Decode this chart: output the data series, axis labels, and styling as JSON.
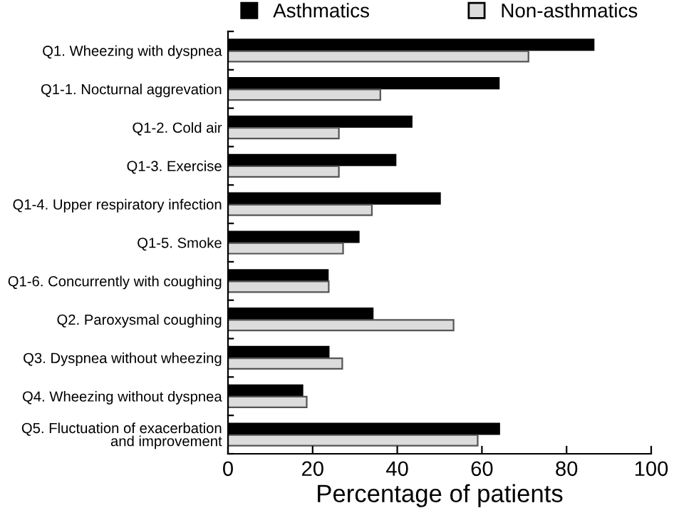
{
  "chart_data": {
    "type": "bar",
    "orientation": "horizontal",
    "xlabel": "Percentage of patients",
    "categories": [
      "Q1. Wheezing with dyspnea",
      "Q1-1. Nocturnal aggrevation",
      "Q1-2. Cold air",
      "Q1-3. Exercise",
      "Q1-4. Upper respiratory infection",
      "Q1-5. Smoke",
      "Q1-6. Concurrently with coughing",
      "Q2. Paroxysmal coughing",
      "Q3. Dyspnea without wheezing",
      "Q4. Wheezing without dyspnea",
      "Q5. Fluctuation of exacerbation\nand improvement"
    ],
    "series": [
      {
        "name": "Asthmatics",
        "color": "#000000",
        "values": [
          86.4,
          64.0,
          43.4,
          39.6,
          50.1,
          30.9,
          23.6,
          34.2,
          23.8,
          17.6,
          64.1
        ]
      },
      {
        "name": "Non-asthmatics",
        "color": "#dcdcdc",
        "values": [
          71.0,
          36.0,
          26.2,
          26.2,
          34.0,
          27.2,
          23.8,
          53.3,
          27.0,
          18.6,
          59.0
        ]
      }
    ],
    "xlim": [
      0,
      100
    ],
    "xticks": [
      0,
      20,
      40,
      60,
      80,
      100
    ],
    "grid": false,
    "legend": "top"
  }
}
